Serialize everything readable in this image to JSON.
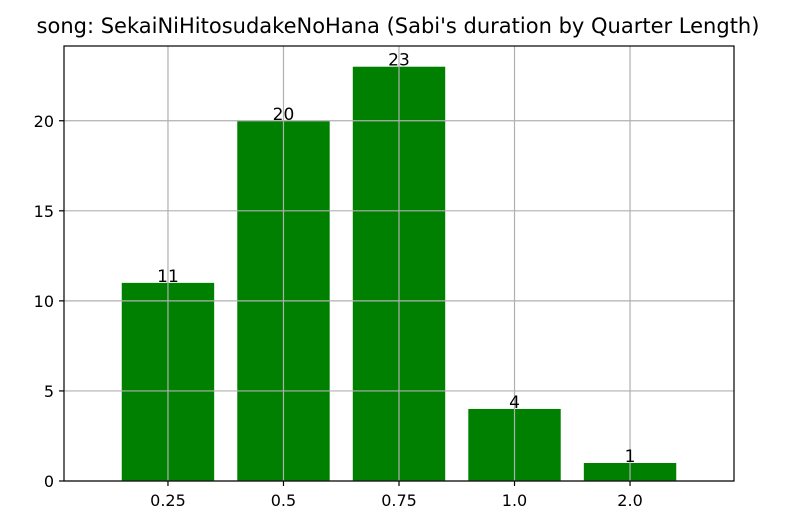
{
  "chart_data": {
    "type": "bar",
    "title": "song: SekaiNiHitosudakeNoHana (Sabi's duration by Quarter Length)",
    "xlabel": "",
    "ylabel": "",
    "categories": [
      "0.25",
      "0.5",
      "0.75",
      "1.0",
      "2.0"
    ],
    "values": [
      11,
      20,
      23,
      4,
      1
    ],
    "data_labels": [
      "11",
      "20",
      "23",
      "4",
      "1"
    ],
    "ylim": [
      0,
      24.15
    ],
    "yticks": [
      0,
      5,
      10,
      15,
      20
    ],
    "ytick_labels": [
      "0",
      "5",
      "10",
      "15",
      "20"
    ],
    "grid": true,
    "colors": {
      "bar": "#008000",
      "grid": "#b0b0b0",
      "axis": "#000000"
    }
  }
}
